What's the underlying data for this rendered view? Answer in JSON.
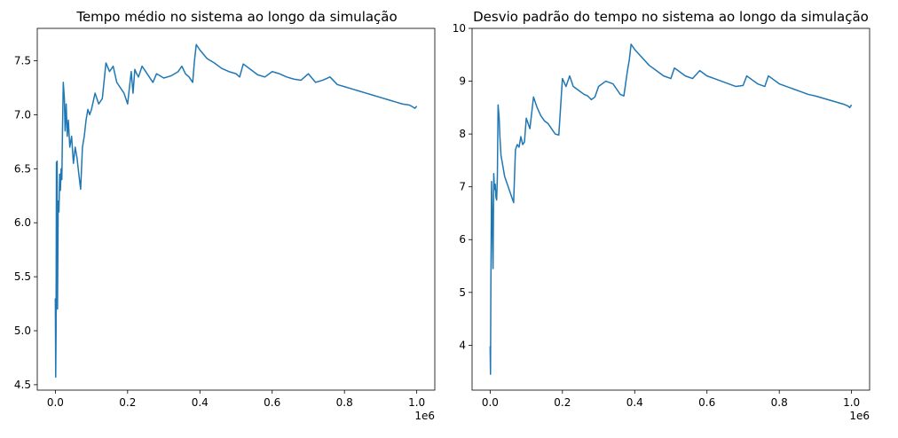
{
  "chart_data": [
    {
      "type": "line",
      "title": "Tempo médio no sistema ao longo da simulação",
      "xlabel": "",
      "ylabel": "",
      "x_offset_label": "1e6",
      "xlim": [
        -0.05,
        1.05
      ],
      "ylim": [
        4.45,
        7.8
      ],
      "xticks": [
        0.0,
        0.2,
        0.4,
        0.6,
        0.8,
        1.0
      ],
      "xtick_labels": [
        "0.0",
        "0.2",
        "0.4",
        "0.6",
        "0.8",
        "1.0"
      ],
      "yticks": [
        4.5,
        5.0,
        5.5,
        6.0,
        6.5,
        7.0,
        7.5
      ],
      "ytick_labels": [
        "4.5",
        "5.0",
        "5.5",
        "6.0",
        "6.5",
        "7.0",
        "7.5"
      ],
      "grid": false,
      "color": "#1f77b4",
      "series": [
        {
          "x": [
            0.0,
            0.001,
            0.002,
            0.003,
            0.004,
            0.005,
            0.006,
            0.008,
            0.01,
            0.012,
            0.014,
            0.016,
            0.018,
            0.02,
            0.022,
            0.025,
            0.027,
            0.03,
            0.033,
            0.036,
            0.04,
            0.045,
            0.05,
            0.055,
            0.06,
            0.065,
            0.07,
            0.075,
            0.08,
            0.085,
            0.09,
            0.095,
            0.1,
            0.11,
            0.12,
            0.13,
            0.14,
            0.15,
            0.16,
            0.17,
            0.18,
            0.19,
            0.2,
            0.21,
            0.215,
            0.22,
            0.225,
            0.23,
            0.24,
            0.25,
            0.26,
            0.27,
            0.28,
            0.3,
            0.32,
            0.34,
            0.35,
            0.36,
            0.37,
            0.38,
            0.385,
            0.39,
            0.4,
            0.42,
            0.44,
            0.46,
            0.48,
            0.5,
            0.51,
            0.52,
            0.54,
            0.56,
            0.58,
            0.6,
            0.62,
            0.64,
            0.66,
            0.68,
            0.7,
            0.72,
            0.74,
            0.76,
            0.78,
            0.8,
            0.82,
            0.84,
            0.86,
            0.88,
            0.9,
            0.92,
            0.94,
            0.96,
            0.98,
            0.99,
            0.995,
            1.0
          ],
          "values": [
            5.3,
            4.57,
            5.0,
            6.56,
            5.7,
            6.57,
            5.2,
            6.2,
            6.1,
            6.45,
            6.3,
            6.5,
            6.4,
            6.9,
            7.3,
            7.15,
            6.85,
            7.1,
            6.8,
            6.95,
            6.7,
            6.8,
            6.55,
            6.7,
            6.6,
            6.45,
            6.31,
            6.7,
            6.8,
            6.95,
            7.05,
            7.0,
            7.05,
            7.2,
            7.1,
            7.15,
            7.48,
            7.4,
            7.45,
            7.3,
            7.25,
            7.2,
            7.1,
            7.4,
            7.2,
            7.42,
            7.38,
            7.35,
            7.45,
            7.4,
            7.35,
            7.3,
            7.38,
            7.34,
            7.36,
            7.4,
            7.45,
            7.38,
            7.35,
            7.3,
            7.5,
            7.65,
            7.6,
            7.52,
            7.48,
            7.43,
            7.4,
            7.38,
            7.35,
            7.47,
            7.42,
            7.37,
            7.35,
            7.4,
            7.38,
            7.35,
            7.33,
            7.32,
            7.38,
            7.3,
            7.32,
            7.35,
            7.28,
            7.26,
            7.24,
            7.22,
            7.2,
            7.18,
            7.16,
            7.14,
            7.12,
            7.1,
            7.09,
            7.07,
            7.06,
            7.08
          ]
        }
      ]
    },
    {
      "type": "line",
      "title": "Desvio padrão do tempo no sistema ao longo da simulação",
      "xlabel": "",
      "ylabel": "",
      "x_offset_label": "1e6",
      "xlim": [
        -0.05,
        1.05
      ],
      "ylim": [
        3.15,
        10.0
      ],
      "xticks": [
        0.0,
        0.2,
        0.4,
        0.6,
        0.8,
        1.0
      ],
      "xtick_labels": [
        "0.0",
        "0.2",
        "0.4",
        "0.6",
        "0.8",
        "1.0"
      ],
      "yticks": [
        4,
        5,
        6,
        7,
        8,
        9,
        10
      ],
      "ytick_labels": [
        "4",
        "5",
        "6",
        "7",
        "8",
        "9",
        "10"
      ],
      "grid": false,
      "color": "#1f77b4",
      "series": [
        {
          "x": [
            0.0,
            0.001,
            0.002,
            0.004,
            0.006,
            0.008,
            0.01,
            0.012,
            0.014,
            0.016,
            0.018,
            0.02,
            0.022,
            0.025,
            0.027,
            0.03,
            0.035,
            0.04,
            0.045,
            0.05,
            0.055,
            0.06,
            0.065,
            0.07,
            0.075,
            0.08,
            0.085,
            0.09,
            0.095,
            0.1,
            0.11,
            0.12,
            0.13,
            0.14,
            0.15,
            0.16,
            0.17,
            0.18,
            0.19,
            0.2,
            0.21,
            0.215,
            0.22,
            0.23,
            0.24,
            0.25,
            0.26,
            0.27,
            0.28,
            0.29,
            0.3,
            0.32,
            0.34,
            0.35,
            0.36,
            0.37,
            0.38,
            0.385,
            0.39,
            0.4,
            0.42,
            0.44,
            0.46,
            0.48,
            0.5,
            0.51,
            0.52,
            0.54,
            0.56,
            0.58,
            0.6,
            0.62,
            0.64,
            0.66,
            0.68,
            0.7,
            0.71,
            0.72,
            0.74,
            0.76,
            0.77,
            0.78,
            0.8,
            0.82,
            0.84,
            0.86,
            0.88,
            0.9,
            0.92,
            0.94,
            0.96,
            0.98,
            0.99,
            0.995,
            1.0
          ],
          "values": [
            3.98,
            3.45,
            5.1,
            7.1,
            6.4,
            5.45,
            7.25,
            6.95,
            7.05,
            6.8,
            6.75,
            7.2,
            8.55,
            8.3,
            7.95,
            7.6,
            7.4,
            7.2,
            7.1,
            7.0,
            6.9,
            6.8,
            6.7,
            7.7,
            7.8,
            7.75,
            7.95,
            7.8,
            7.85,
            8.3,
            8.1,
            8.7,
            8.5,
            8.35,
            8.25,
            8.2,
            8.1,
            8.0,
            7.98,
            9.05,
            8.9,
            9.0,
            9.1,
            8.9,
            8.85,
            8.8,
            8.75,
            8.72,
            8.65,
            8.7,
            8.9,
            9.0,
            8.95,
            8.85,
            8.75,
            8.72,
            9.2,
            9.4,
            9.7,
            9.6,
            9.45,
            9.3,
            9.2,
            9.1,
            9.05,
            9.25,
            9.2,
            9.1,
            9.05,
            9.2,
            9.1,
            9.05,
            9.0,
            8.95,
            8.9,
            8.92,
            9.1,
            9.05,
            8.95,
            8.9,
            9.1,
            9.05,
            8.95,
            8.9,
            8.85,
            8.8,
            8.75,
            8.72,
            8.68,
            8.64,
            8.6,
            8.56,
            8.53,
            8.5,
            8.55
          ]
        }
      ]
    }
  ]
}
